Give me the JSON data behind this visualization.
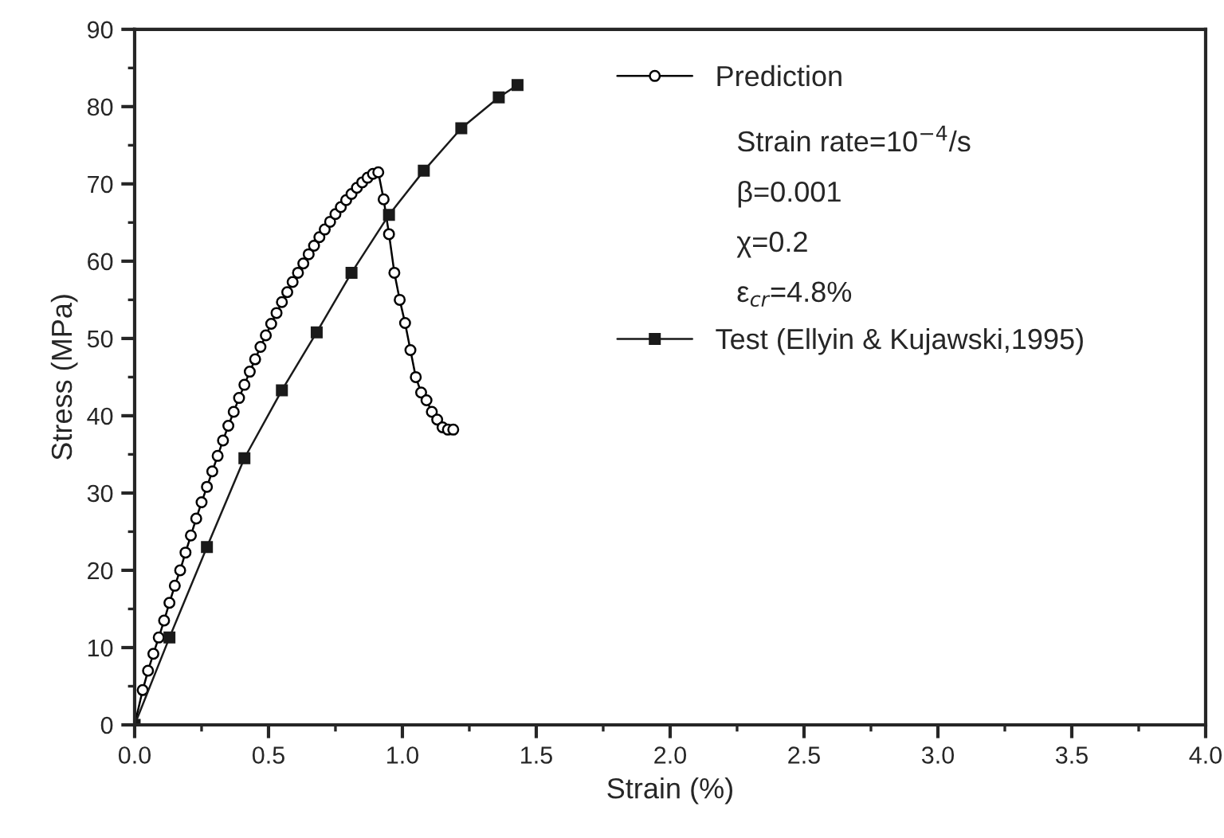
{
  "chart_data": {
    "type": "line",
    "xlabel": "Strain (%)",
    "ylabel": "Stress (MPa)",
    "xlim": [
      0,
      4
    ],
    "ylim": [
      0,
      90
    ],
    "xticks": [
      {
        "value": 0,
        "label": "0.0"
      },
      {
        "value": 0.5,
        "label": "0.5"
      },
      {
        "value": 1,
        "label": "1.0"
      },
      {
        "value": 1.5,
        "label": "1.5"
      },
      {
        "value": 2,
        "label": "2.0"
      },
      {
        "value": 2.5,
        "label": "2.5"
      },
      {
        "value": 3,
        "label": "3.0"
      },
      {
        "value": 3.5,
        "label": "3.5"
      },
      {
        "value": 4,
        "label": "4.0"
      }
    ],
    "yticks": [
      0,
      10,
      20,
      30,
      40,
      50,
      60,
      70,
      80,
      90
    ],
    "grid": false,
    "legend": "top right",
    "series": [
      {
        "name": "Prediction",
        "color": "#000000",
        "marker": "circle",
        "x": [
          0,
          0.03,
          0.05,
          0.07,
          0.09,
          0.11,
          0.13,
          0.15,
          0.17,
          0.19,
          0.21,
          0.23,
          0.25,
          0.27,
          0.29,
          0.31,
          0.33,
          0.35,
          0.37,
          0.39,
          0.41,
          0.43,
          0.45,
          0.47,
          0.49,
          0.51,
          0.53,
          0.55,
          0.57,
          0.59,
          0.61,
          0.63,
          0.65,
          0.67,
          0.69,
          0.71,
          0.73,
          0.75,
          0.77,
          0.79,
          0.81,
          0.83,
          0.85,
          0.87,
          0.89,
          0.91,
          0.93,
          0.95,
          0.97,
          0.99,
          1.01,
          1.03,
          1.05,
          1.07,
          1.09,
          1.11,
          1.13,
          1.15,
          1.17,
          1.19
        ],
        "values": [
          0,
          4.5,
          7,
          9.2,
          11.3,
          13.5,
          15.8,
          18,
          20,
          22.3,
          24.5,
          26.7,
          28.8,
          30.8,
          32.8,
          34.8,
          36.8,
          38.7,
          40.5,
          42.3,
          44,
          45.7,
          47.3,
          48.9,
          50.4,
          51.9,
          53.3,
          54.7,
          56,
          57.3,
          58.5,
          59.7,
          60.9,
          62,
          63.1,
          64.1,
          65.1,
          66.1,
          67,
          67.9,
          68.7,
          69.5,
          70.2,
          70.8,
          71.3,
          71.5,
          68,
          63.5,
          58.5,
          55,
          52,
          48.5,
          45,
          43,
          42,
          40.5,
          39.5,
          38.5,
          38.2,
          38.2
        ]
      },
      {
        "name": "Test (Ellyin & Kujawski,1995)",
        "color": "#1a1a1a",
        "marker": "square",
        "x": [
          0,
          0.13,
          0.27,
          0.41,
          0.55,
          0.68,
          0.81,
          0.95,
          1.08,
          1.22,
          1.36,
          1.43
        ],
        "values": [
          0,
          11.3,
          23,
          34.5,
          43.3,
          50.8,
          58.5,
          66,
          71.7,
          77.2,
          81.2,
          82.8
        ]
      }
    ],
    "annotations": [
      "Strain rate=10$^{−4}$/s",
      "β=0.001",
      "χ=0.2",
      "ε$_{cr}$=4.8%"
    ]
  }
}
